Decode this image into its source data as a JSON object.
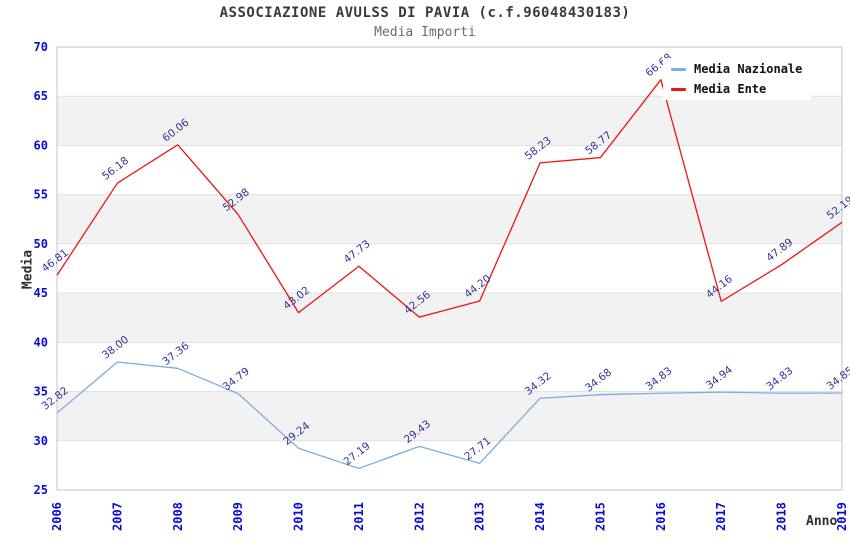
{
  "header": {
    "title": "ASSOCIAZIONE AVULSS DI PAVIA (c.f.96048430183)",
    "subtitle": "Media Importi"
  },
  "chart_data": {
    "type": "line",
    "title": "ASSOCIAZIONE AVULSS DI PAVIA (c.f.96048430183)",
    "subtitle": "Media Importi",
    "xlabel": "Anno",
    "ylabel": "Media",
    "x": [
      2006,
      2007,
      2008,
      2009,
      2010,
      2011,
      2012,
      2013,
      2014,
      2015,
      2016,
      2017,
      2018,
      2019
    ],
    "ylim": [
      25,
      70
    ],
    "ytick_step": 5,
    "grid": true,
    "legend_position": "top-right",
    "series": [
      {
        "name": "Media Nazionale",
        "color": "#7aaee3",
        "values": [
          32.82,
          38.0,
          37.36,
          34.79,
          29.24,
          27.19,
          29.43,
          27.71,
          34.32,
          34.68,
          34.83,
          34.94,
          34.83,
          34.85
        ]
      },
      {
        "name": "Media Ente",
        "color": "#ee1414",
        "values": [
          46.81,
          56.18,
          60.06,
          52.98,
          43.02,
          47.73,
          42.56,
          44.2,
          58.23,
          58.77,
          66.68,
          44.16,
          47.89,
          52.19
        ]
      }
    ],
    "colors": {
      "band_fill": "#f2f2f2",
      "grid_line": "#e2e2e2",
      "frame": "#c4c4c4",
      "tick_label": "#0a0ad6",
      "data_label": "#333399"
    }
  }
}
